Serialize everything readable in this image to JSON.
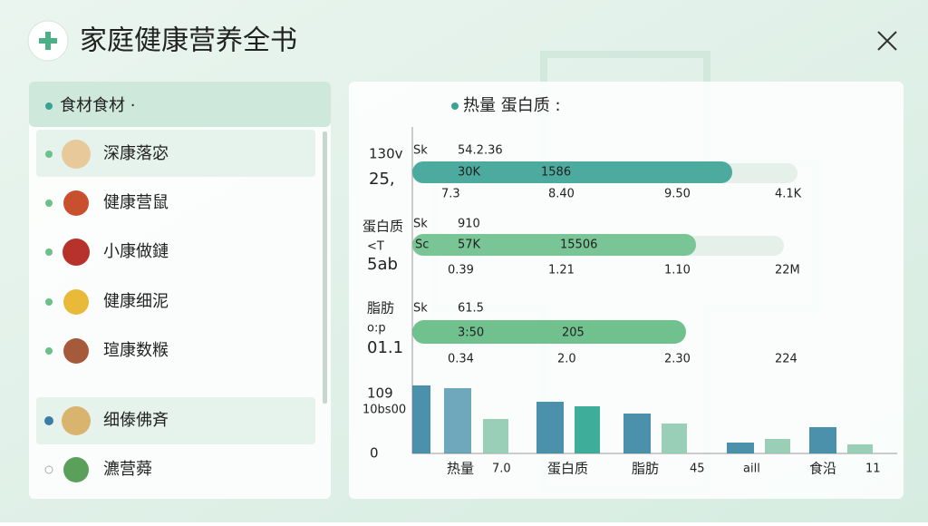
{
  "header": {
    "title": "家庭健康营养全书"
  },
  "sidebar": {
    "title": "食材食材 ·",
    "items": [
      "深康落宓",
      "健康营鼠",
      "小康做鏈",
      "健康细泥",
      "瑄康数糇",
      "细傣佛斉",
      "瀌营蕣"
    ]
  },
  "panel": {
    "legend": "热量 蛋白质 :",
    "rows": [
      {
        "labels": [
          "130v",
          "25,"
        ],
        "texts": [
          "Sk",
          "54.2.36",
          "30K",
          "1586",
          "7.3",
          "8.40",
          "9.50",
          "4.1K"
        ]
      },
      {
        "labels": [
          "蛋白质",
          "<T",
          "5ab"
        ],
        "texts": [
          "Sk",
          "910",
          "Sc",
          "57K",
          "15506",
          "0.39",
          "1.21",
          "1.10",
          "22M"
        ]
      },
      {
        "labels": [
          "脂肪",
          "o:p",
          "01.1"
        ],
        "texts": [
          "Sk",
          "61.5",
          "3:50",
          "205",
          "0.34",
          "2.0",
          "2.30",
          "224"
        ]
      }
    ],
    "bottom": {
      "labels": [
        "109",
        "10bs00",
        "0"
      ],
      "x_labels": [
        "热量",
        "7.0",
        "蛋白质",
        "脂肪",
        "45",
        "aill",
        "食沿",
        "11"
      ]
    }
  }
}
